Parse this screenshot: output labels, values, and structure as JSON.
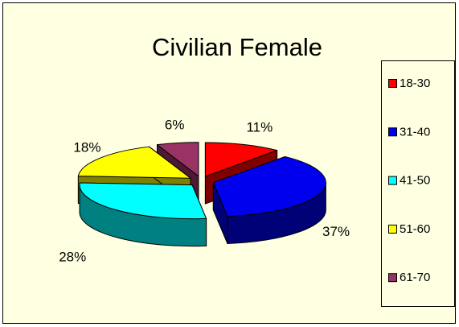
{
  "chart_data": {
    "type": "pie",
    "title": "Civilian Female",
    "categories": [
      "18-30",
      "31-40",
      "41-50",
      "51-60",
      "61-70"
    ],
    "values": [
      11,
      37,
      28,
      18,
      6
    ],
    "value_labels": [
      "11%",
      "37%",
      "28%",
      "18%",
      "6%"
    ],
    "colors": [
      "#ff0000",
      "#0000ee",
      "#00ffff",
      "#ffff00",
      "#993366"
    ],
    "legend": "right"
  }
}
